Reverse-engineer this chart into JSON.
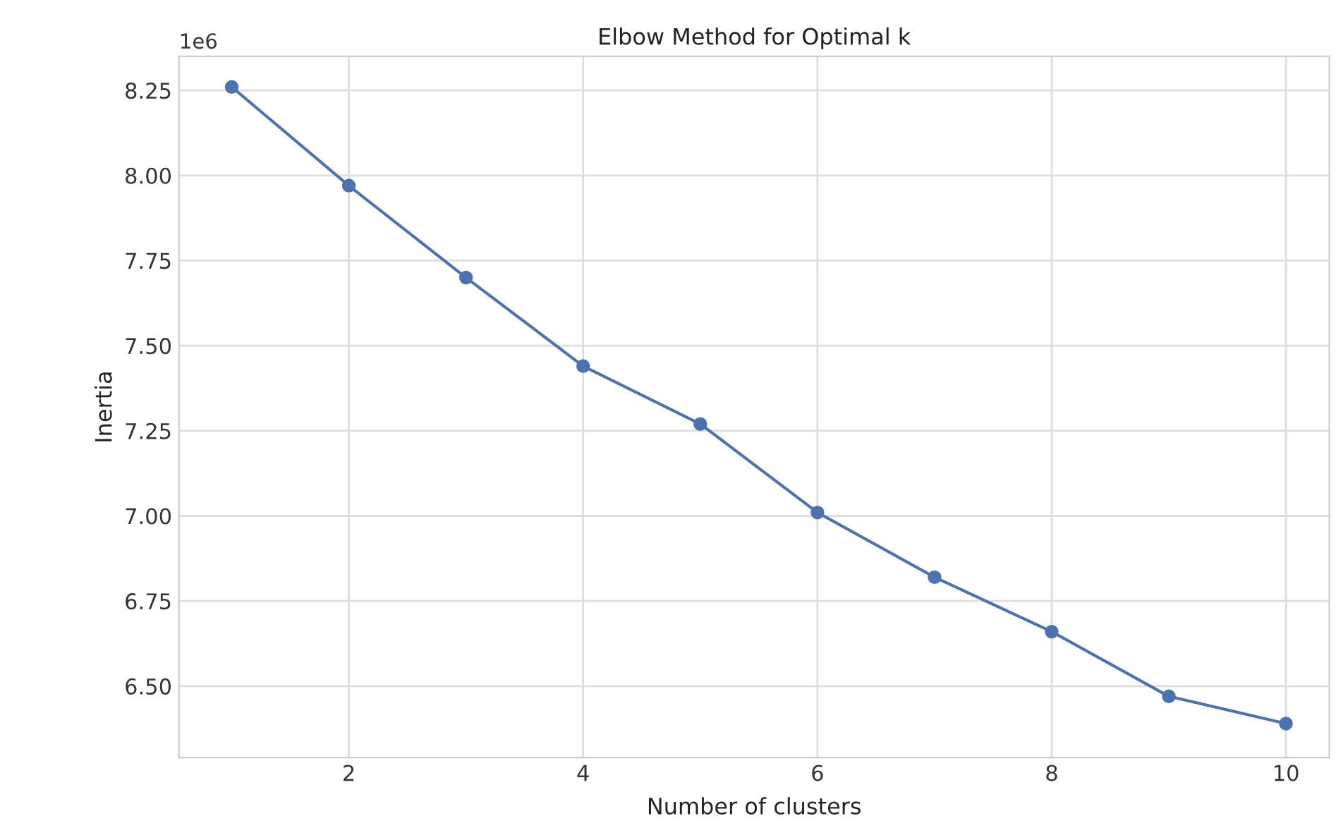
{
  "chart_data": {
    "type": "line",
    "title": "Elbow Method for Optimal k",
    "xlabel": "Number of clusters",
    "ylabel": "Inertia",
    "annotations": [
      "1e6"
    ],
    "x": [
      1,
      2,
      3,
      4,
      5,
      6,
      7,
      8,
      9,
      10
    ],
    "series": [
      {
        "color": "#4c72b0",
        "values": [
          8.26,
          7.97,
          7.7,
          7.44,
          7.27,
          7.01,
          6.82,
          6.66,
          6.47,
          6.39
        ]
      }
    ],
    "xlim": [
      0.55,
      10.37
    ],
    "xticks": [
      2,
      4,
      6,
      8,
      10
    ],
    "ylim": [
      6.29,
      8.35
    ],
    "yticks": [
      {
        "value": 6.5,
        "label": "6.50"
      },
      {
        "value": 6.75,
        "label": "6.75"
      },
      {
        "value": 7.0,
        "label": "7.00"
      },
      {
        "value": 7.25,
        "label": "7.25"
      },
      {
        "value": 7.5,
        "label": "7.50"
      },
      {
        "value": 7.75,
        "label": "7.75"
      },
      {
        "value": 8.0,
        "label": "8.00"
      },
      {
        "value": 8.25,
        "label": "8.25"
      }
    ],
    "grid": true,
    "marker": "circle",
    "line_style": "solid",
    "legend": false
  }
}
